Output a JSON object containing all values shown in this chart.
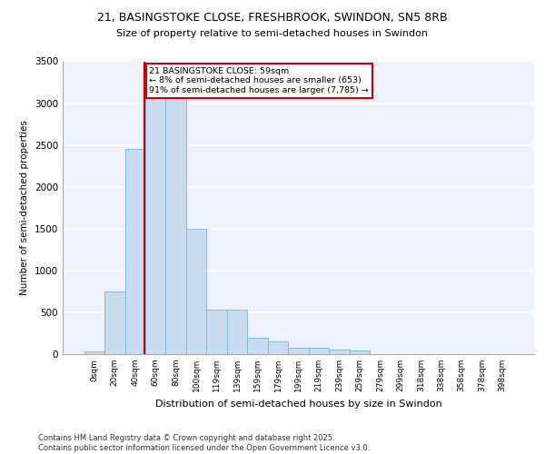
{
  "title_line1": "21, BASINGSTOKE CLOSE, FRESHBROOK, SWINDON, SN5 8RB",
  "title_line2": "Size of property relative to semi-detached houses in Swindon",
  "xlabel": "Distribution of semi-detached houses by size in Swindon",
  "ylabel": "Number of semi-detached properties",
  "footer_line1": "Contains HM Land Registry data © Crown copyright and database right 2025.",
  "footer_line2": "Contains public sector information licensed under the Open Government Licence v3.0.",
  "annotation_title": "21 BASINGSTOKE CLOSE: 59sqm",
  "annotation_line1": "← 8% of semi-detached houses are smaller (653)",
  "annotation_line2": "91% of semi-detached houses are larger (7,785) →",
  "bar_categories": [
    "0sqm",
    "20sqm",
    "40sqm",
    "60sqm",
    "80sqm",
    "100sqm",
    "119sqm",
    "139sqm",
    "159sqm",
    "179sqm",
    "199sqm",
    "219sqm",
    "239sqm",
    "259sqm",
    "279sqm",
    "299sqm",
    "318sqm",
    "338sqm",
    "358sqm",
    "378sqm",
    "398sqm"
  ],
  "bar_values": [
    30,
    750,
    2450,
    3250,
    3250,
    1500,
    530,
    530,
    190,
    150,
    75,
    75,
    55,
    40,
    0,
    0,
    0,
    0,
    0,
    0,
    0
  ],
  "bar_color": "#c9ddf0",
  "bar_edge_color": "#7ab4d8",
  "vline_color": "#cc0000",
  "ylim": [
    0,
    3500
  ],
  "yticks": [
    0,
    500,
    1000,
    1500,
    2000,
    2500,
    3000,
    3500
  ],
  "bg_color": "#eef2fb",
  "grid_color": "#ffffff",
  "annotation_box_edge": "#cc0000",
  "vline_pos": 2.45
}
